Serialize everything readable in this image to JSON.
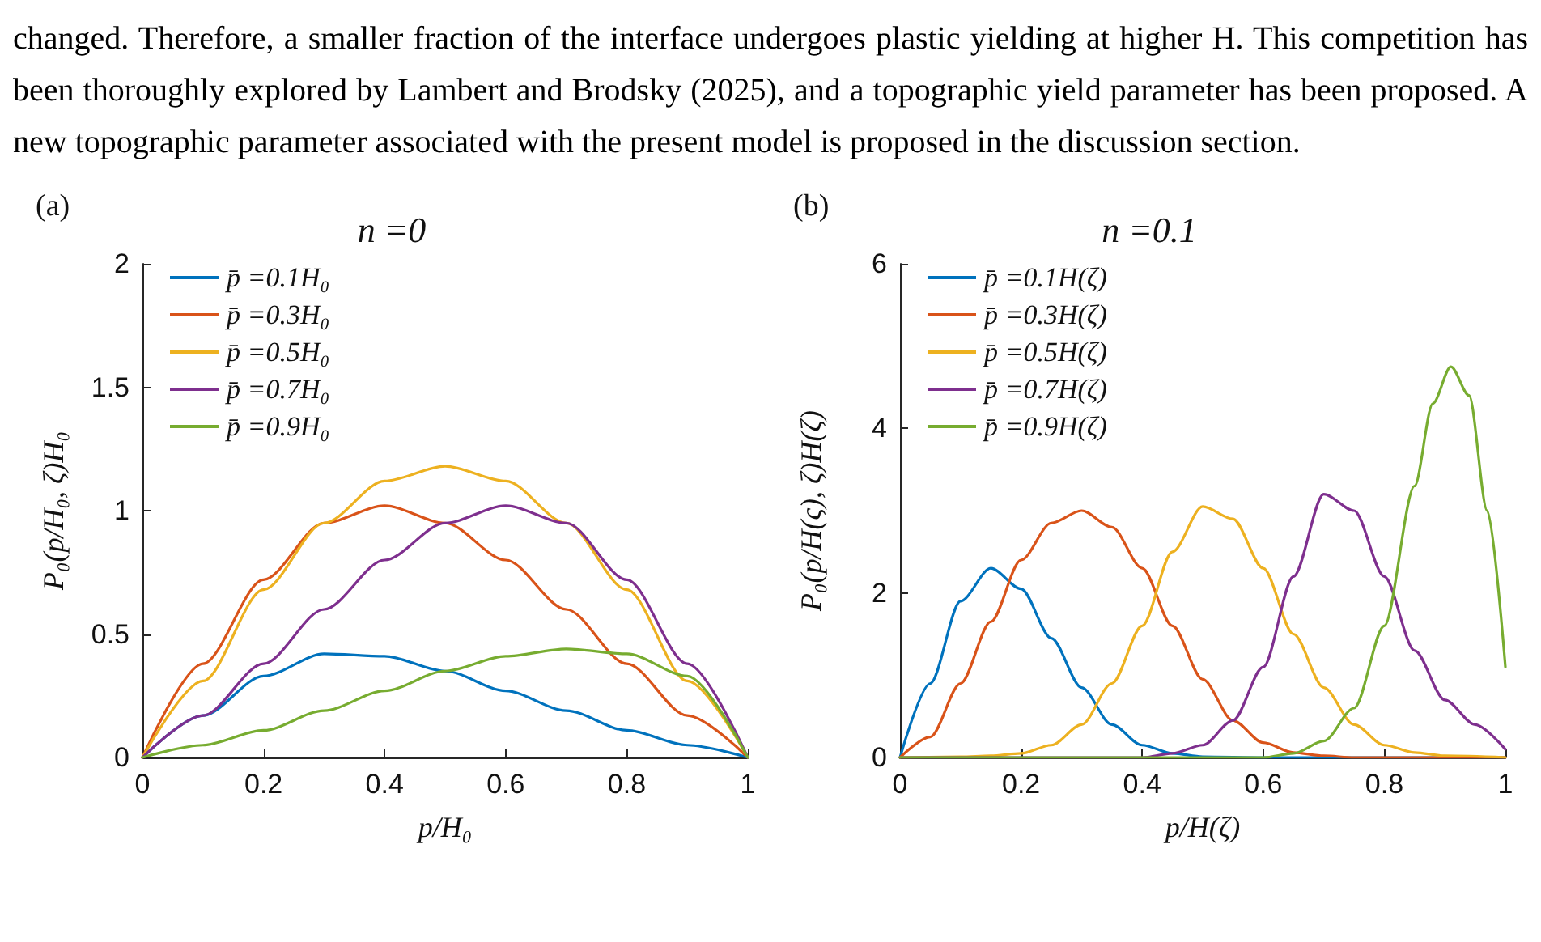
{
  "chart_data": [
    {
      "type": "line",
      "title": "n =0",
      "xlabel": "p/H₀",
      "ylabel": "P₀(p/H₀, ζ)H₀",
      "annotations": [
        "(a)",
        "changed. Therefore, a smaller fraction of the interface undergoes plastic yielding at higher H. This competition has been thoroughly explored by Lambert and Brodsky (2025), and a topographic yield parameter has been proposed. A new topographic parameter associated with the present model is proposed in the discussion section."
      ],
      "x": [
        0,
        0.1,
        0.2,
        0.3,
        0.4,
        0.5,
        0.6,
        0.7,
        0.8,
        0.9,
        1
      ],
      "xlim": [
        0,
        1
      ],
      "xticks": [
        0,
        0.2,
        0.4,
        0.6,
        0.8,
        1
      ],
      "ylim": [
        0,
        2
      ],
      "yticks": [
        0,
        0.5,
        1,
        1.5,
        2
      ],
      "grid": false,
      "legend": "top left",
      "marker": "none",
      "line_style": "solid",
      "series": [
        {
          "name": "p̄ =0.1H₀",
          "color": "#0072bd",
          "values": [
            0,
            0.17,
            0.33,
            0.42,
            0.41,
            0.35,
            0.27,
            0.19,
            0.11,
            0.05,
            0
          ]
        },
        {
          "name": "p̄ =0.3H₀",
          "color": "#d95319",
          "values": [
            0,
            0.38,
            0.72,
            0.95,
            1.02,
            0.95,
            0.8,
            0.6,
            0.38,
            0.17,
            0
          ]
        },
        {
          "name": "p̄ =0.5H₀",
          "color": "#edb120",
          "values": [
            0,
            0.31,
            0.68,
            0.95,
            1.12,
            1.18,
            1.12,
            0.95,
            0.68,
            0.31,
            0
          ]
        },
        {
          "name": "p̄ =0.7H₀",
          "color": "#7e2f8e",
          "values": [
            0,
            0.17,
            0.38,
            0.6,
            0.8,
            0.95,
            1.02,
            0.95,
            0.72,
            0.38,
            0
          ]
        },
        {
          "name": "p̄ =0.9H₀",
          "color": "#77ac30",
          "values": [
            0,
            0.05,
            0.11,
            0.19,
            0.27,
            0.35,
            0.41,
            0.44,
            0.42,
            0.33,
            0
          ]
        }
      ]
    },
    {
      "type": "line",
      "title": "n =0.1",
      "xlabel": "p/H(ζ)",
      "ylabel": "P₀(p/H(ς), ζ)H(ζ)",
      "annotations": [
        "(b)"
      ],
      "xlim": [
        0,
        1
      ],
      "xticks": [
        0,
        0.2,
        0.4,
        0.6,
        0.8,
        1
      ],
      "ylim": [
        0,
        6
      ],
      "yticks": [
        0,
        2,
        4,
        6
      ],
      "grid": false,
      "legend": "top left",
      "marker": "none",
      "line_style": "solid",
      "series": [
        {
          "name": "p̄ =0.1H(ζ)",
          "color": "#0072bd",
          "x": [
            0,
            0.05,
            0.1,
            0.15,
            0.2,
            0.25,
            0.3,
            0.35,
            0.4,
            0.45,
            0.5,
            0.6,
            0.8,
            1
          ],
          "values": [
            0,
            0.9,
            1.9,
            2.3,
            2.05,
            1.45,
            0.85,
            0.4,
            0.15,
            0.05,
            0.01,
            0,
            0,
            0
          ]
        },
        {
          "name": "p̄ =0.3H(ζ)",
          "color": "#d95319",
          "x": [
            0,
            0.05,
            0.1,
            0.15,
            0.2,
            0.25,
            0.3,
            0.35,
            0.4,
            0.45,
            0.5,
            0.55,
            0.6,
            0.65,
            0.7,
            0.75,
            1
          ],
          "values": [
            0,
            0.25,
            0.9,
            1.65,
            2.4,
            2.85,
            3,
            2.8,
            2.3,
            1.6,
            0.95,
            0.45,
            0.18,
            0.06,
            0.02,
            0,
            0
          ]
        },
        {
          "name": "p̄ =0.5H(ζ)",
          "color": "#edb120",
          "x": [
            0,
            0.1,
            0.15,
            0.2,
            0.25,
            0.3,
            0.35,
            0.4,
            0.45,
            0.5,
            0.55,
            0.6,
            0.65,
            0.7,
            0.75,
            0.8,
            0.85,
            0.9,
            1
          ],
          "values": [
            0,
            0.01,
            0.02,
            0.05,
            0.15,
            0.4,
            0.9,
            1.6,
            2.5,
            3.05,
            2.9,
            2.3,
            1.5,
            0.85,
            0.4,
            0.15,
            0.06,
            0.02,
            0
          ]
        },
        {
          "name": "p̄ =0.7H(ζ)",
          "color": "#7e2f8e",
          "x": [
            0,
            0.4,
            0.45,
            0.5,
            0.55,
            0.6,
            0.65,
            0.7,
            0.75,
            0.8,
            0.85,
            0.9,
            0.95,
            1
          ],
          "values": [
            0,
            0,
            0.05,
            0.15,
            0.45,
            1.1,
            2.2,
            3.2,
            3,
            2.2,
            1.3,
            0.7,
            0.4,
            0.1
          ]
        },
        {
          "name": "p̄ =0.9H(ζ)",
          "color": "#77ac30",
          "x": [
            0,
            0.6,
            0.65,
            0.7,
            0.75,
            0.8,
            0.85,
            0.88,
            0.91,
            0.94,
            0.97,
            1
          ],
          "values": [
            0,
            0,
            0.05,
            0.2,
            0.6,
            1.6,
            3.3,
            4.3,
            4.75,
            4.4,
            3,
            1.1
          ]
        }
      ]
    }
  ]
}
